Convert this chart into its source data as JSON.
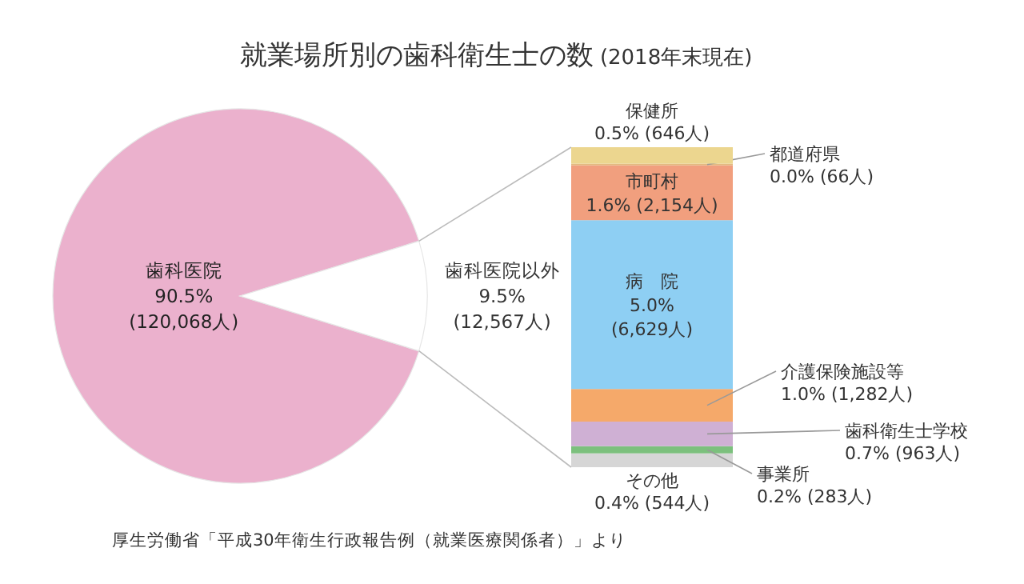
{
  "chart_data": [
    {
      "type": "pie",
      "title": "就業場所別の歯科衛生士の数",
      "subtitle": "(2018年末現在)",
      "categories": [
        "歯科医院",
        "歯科医院以外"
      ],
      "values": [
        120068,
        12567
      ],
      "colors": [
        "#ebb1cd",
        "#ffffff"
      ],
      "value_labels": [
        "90.5% (120,068人)",
        "9.5% (12,567人)"
      ],
      "annotations": [
        "厚生労働省「平成30年衛生行政報告例（就業医療関係者）」より"
      ]
    },
    {
      "type": "bar",
      "stacked": true,
      "categories": [
        null
      ],
      "series": [
        {
          "name": "その他",
          "color": "#d6d6d6",
          "values": [
            544
          ],
          "value_labels": [
            "0.4% (544人)"
          ]
        },
        {
          "name": "事業所",
          "color": "#7cc07d",
          "values": [
            283
          ],
          "value_labels": [
            "0.2% (283人)"
          ]
        },
        {
          "name": "歯科衛生士学校",
          "color": "#cfb0d4",
          "values": [
            963
          ],
          "value_labels": [
            "0.7% (963人)"
          ]
        },
        {
          "name": "介護保険施設等",
          "color": "#f5a96a",
          "values": [
            1282
          ],
          "value_labels": [
            "1.0% (1,282人)"
          ]
        },
        {
          "name": "病　院",
          "color": "#8ecff3",
          "values": [
            6629
          ],
          "value_labels": [
            "5.0% (6,629人)"
          ]
        },
        {
          "name": "市町村",
          "color": "#f19f7e",
          "values": [
            2154
          ],
          "value_labels": [
            "1.6% (2,154人)"
          ]
        },
        {
          "name": "都道府県",
          "color": "#e3b87f",
          "values": [
            66
          ],
          "value_labels": [
            "0.0% (66人)"
          ]
        },
        {
          "name": "保健所",
          "color": "#ecd68f",
          "values": [
            646
          ],
          "value_labels": [
            "0.5% (646人)"
          ]
        }
      ]
    }
  ]
}
